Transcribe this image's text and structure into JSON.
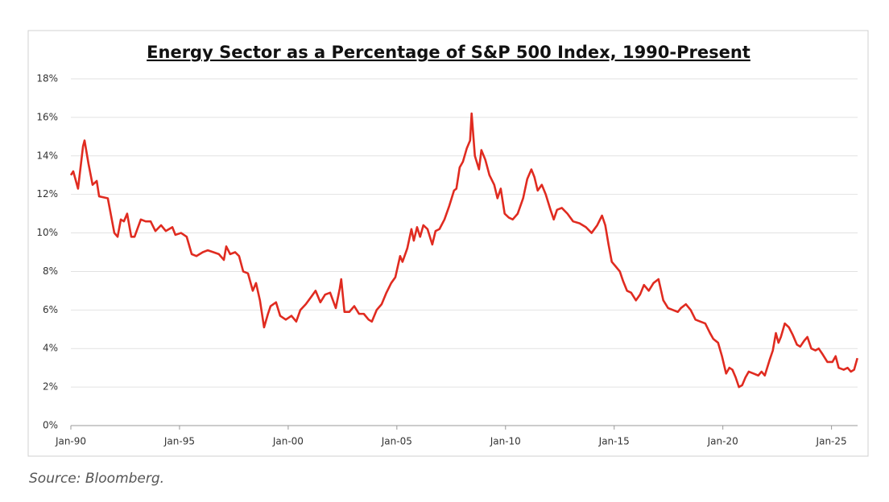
{
  "chart_data": {
    "type": "line",
    "title": "Energy Sector as a Percentage of S&P 500 Index, 1990-Present",
    "source": "Source: Bloomberg.",
    "grid": true,
    "xlim": [
      1990,
      2026.2
    ],
    "xticks": [
      {
        "value": 1990,
        "label": "Jan-90"
      },
      {
        "value": 1995,
        "label": "Jan-95"
      },
      {
        "value": 2000,
        "label": "Jan-00"
      },
      {
        "value": 2005,
        "label": "Jan-05"
      },
      {
        "value": 2010,
        "label": "Jan-10"
      },
      {
        "value": 2015,
        "label": "Jan-15"
      },
      {
        "value": 2020,
        "label": "Jan-20"
      },
      {
        "value": 2025,
        "label": "Jan-25"
      }
    ],
    "ylim": [
      0,
      18
    ],
    "yticks": [
      {
        "value": 0,
        "label": "0%"
      },
      {
        "value": 2,
        "label": "2%"
      },
      {
        "value": 4,
        "label": "4%"
      },
      {
        "value": 6,
        "label": "6%"
      },
      {
        "value": 8,
        "label": "8%"
      },
      {
        "value": 10,
        "label": "10%"
      },
      {
        "value": 12,
        "label": "12%"
      },
      {
        "value": 14,
        "label": "14%"
      },
      {
        "value": 16,
        "label": "16%"
      },
      {
        "value": 18,
        "label": "18%"
      }
    ],
    "x": [
      1990.0,
      1990.11,
      1990.33,
      1990.56,
      1990.63,
      1990.81,
      1991.0,
      1991.19,
      1991.3,
      1991.7,
      1992.0,
      1992.15,
      1992.3,
      1992.44,
      1992.59,
      1992.78,
      1992.93,
      1993.22,
      1993.44,
      1993.67,
      1993.89,
      1994.15,
      1994.37,
      1994.67,
      1994.81,
      1995.07,
      1995.33,
      1995.56,
      1995.78,
      1996.07,
      1996.3,
      1996.56,
      1996.81,
      1997.04,
      1997.15,
      1997.33,
      1997.56,
      1997.74,
      1997.93,
      1998.15,
      1998.37,
      1998.52,
      1998.7,
      1998.89,
      1999.07,
      1999.19,
      1999.44,
      1999.63,
      1999.89,
      2000.15,
      2000.37,
      2000.56,
      2000.81,
      2001.07,
      2001.26,
      2001.48,
      2001.7,
      2001.93,
      2002.19,
      2002.37,
      2002.44,
      2002.59,
      2002.81,
      2003.04,
      2003.26,
      2003.48,
      2003.7,
      2003.85,
      2004.07,
      2004.3,
      2004.52,
      2004.74,
      2004.93,
      2005.15,
      2005.26,
      2005.48,
      2005.67,
      2005.78,
      2005.93,
      2006.07,
      2006.22,
      2006.41,
      2006.63,
      2006.78,
      2006.96,
      2007.19,
      2007.41,
      2007.63,
      2007.74,
      2007.89,
      2008.04,
      2008.22,
      2008.37,
      2008.44,
      2008.59,
      2008.78,
      2008.89,
      2009.07,
      2009.26,
      2009.48,
      2009.63,
      2009.78,
      2009.96,
      2010.15,
      2010.33,
      2010.56,
      2010.81,
      2011.0,
      2011.19,
      2011.33,
      2011.48,
      2011.67,
      2011.85,
      2012.07,
      2012.22,
      2012.37,
      2012.59,
      2012.85,
      2013.11,
      2013.41,
      2013.7,
      2013.96,
      2014.22,
      2014.44,
      2014.59,
      2014.74,
      2014.89,
      2015.04,
      2015.26,
      2015.41,
      2015.59,
      2015.78,
      2016.0,
      2016.19,
      2016.37,
      2016.59,
      2016.81,
      2017.04,
      2017.26,
      2017.48,
      2017.7,
      2017.93,
      2018.07,
      2018.3,
      2018.52,
      2018.74,
      2018.96,
      2019.19,
      2019.41,
      2019.56,
      2019.78,
      2019.96,
      2020.15,
      2020.3,
      2020.44,
      2020.59,
      2020.74,
      2020.89,
      2021.04,
      2021.19,
      2021.41,
      2021.63,
      2021.78,
      2021.93,
      2022.15,
      2022.3,
      2022.44,
      2022.56,
      2022.67,
      2022.85,
      2023.04,
      2023.22,
      2023.41,
      2023.56,
      2023.74,
      2023.89,
      2024.07,
      2024.26,
      2024.41,
      2024.59,
      2024.81,
      2025.04,
      2025.19,
      2025.33,
      2025.56,
      2025.74,
      2025.89,
      2026.04,
      2026.19
    ],
    "series": [
      {
        "color": "#e02b20",
        "values": [
          13.0,
          13.2,
          12.3,
          14.5,
          14.8,
          13.6,
          12.5,
          12.7,
          11.9,
          11.8,
          10.0,
          9.8,
          10.7,
          10.6,
          11.0,
          9.8,
          9.8,
          10.7,
          10.6,
          10.6,
          10.1,
          10.4,
          10.1,
          10.3,
          9.9,
          10.0,
          9.8,
          8.9,
          8.8,
          9.0,
          9.1,
          9.0,
          8.9,
          8.6,
          9.3,
          8.9,
          9.0,
          8.8,
          8.0,
          7.9,
          7.0,
          7.4,
          6.5,
          5.1,
          5.8,
          6.2,
          6.4,
          5.7,
          5.5,
          5.7,
          5.4,
          6.0,
          6.3,
          6.7,
          7.0,
          6.4,
          6.8,
          6.9,
          6.1,
          7.1,
          7.6,
          5.9,
          5.9,
          6.2,
          5.8,
          5.8,
          5.5,
          5.4,
          6.0,
          6.3,
          6.9,
          7.4,
          7.7,
          8.8,
          8.5,
          9.2,
          10.2,
          9.6,
          10.3,
          9.8,
          10.4,
          10.2,
          9.4,
          10.1,
          10.2,
          10.7,
          11.4,
          12.2,
          12.3,
          13.4,
          13.7,
          14.4,
          14.8,
          16.2,
          14.0,
          13.3,
          14.3,
          13.8,
          13.0,
          12.5,
          11.8,
          12.3,
          11.0,
          10.8,
          10.7,
          11.0,
          11.8,
          12.8,
          13.3,
          12.9,
          12.2,
          12.5,
          12.0,
          11.2,
          10.7,
          11.2,
          11.3,
          11.0,
          10.6,
          10.5,
          10.3,
          10.0,
          10.4,
          10.9,
          10.4,
          9.4,
          8.5,
          8.3,
          8.0,
          7.5,
          7.0,
          6.9,
          6.5,
          6.8,
          7.3,
          7.0,
          7.4,
          7.6,
          6.5,
          6.1,
          6.0,
          5.9,
          6.1,
          6.3,
          6.0,
          5.5,
          5.4,
          5.3,
          4.8,
          4.5,
          4.3,
          3.6,
          2.7,
          3.0,
          2.9,
          2.5,
          2.0,
          2.1,
          2.5,
          2.8,
          2.7,
          2.6,
          2.8,
          2.6,
          3.4,
          3.9,
          4.8,
          4.3,
          4.6,
          5.3,
          5.1,
          4.7,
          4.2,
          4.1,
          4.4,
          4.6,
          4.0,
          3.9,
          4.0,
          3.7,
          3.3,
          3.3,
          3.6,
          3.0,
          2.9,
          3.0,
          2.8,
          2.9,
          3.5
        ]
      }
    ]
  }
}
